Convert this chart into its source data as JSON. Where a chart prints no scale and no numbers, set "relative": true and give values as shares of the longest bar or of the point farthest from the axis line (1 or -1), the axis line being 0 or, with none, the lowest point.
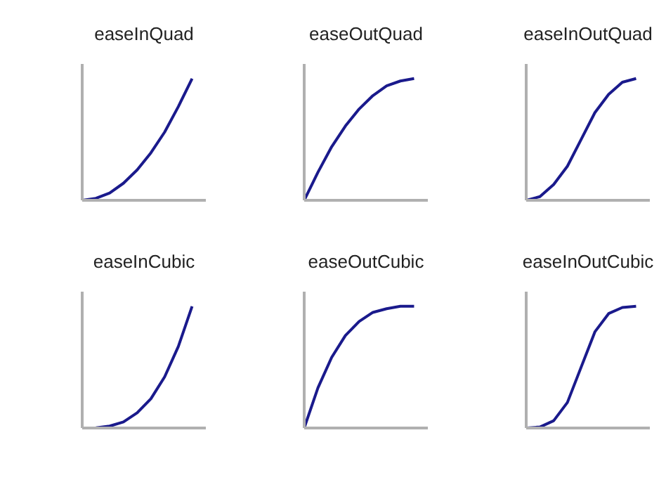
{
  "chart_data": [
    {
      "type": "line",
      "title": "easeInQuad",
      "relative": true,
      "categories": [
        null,
        null,
        null,
        null,
        null,
        null,
        null,
        null,
        null,
        null
      ],
      "series": [
        {
          "color": "#1a1a8c",
          "values": [
            0,
            0.016,
            0.06,
            0.14,
            0.25,
            0.39,
            0.56,
            0.77,
            1,
            null
          ]
        }
      ],
      "marker": "none"
    },
    {
      "type": "line",
      "title": "easeOutQuad",
      "relative": true,
      "categories": [
        null,
        null,
        null,
        null,
        null,
        null,
        null,
        null,
        null,
        null
      ],
      "series": [
        {
          "color": "#1a1a8c",
          "values": [
            0,
            0.23,
            0.44,
            0.61,
            0.75,
            0.86,
            0.94,
            0.98,
            1,
            null
          ]
        }
      ],
      "marker": "none"
    },
    {
      "type": "line",
      "title": "easeInOutQuad",
      "relative": true,
      "categories": [
        null,
        null,
        null,
        null,
        null,
        null,
        null,
        null,
        null,
        null
      ],
      "series": [
        {
          "color": "#1a1a8c",
          "values": [
            0,
            0.03,
            0.13,
            0.28,
            0.5,
            0.72,
            0.87,
            0.97,
            1,
            null
          ]
        }
      ],
      "marker": "none"
    },
    {
      "type": "line",
      "title": "easeInCubic",
      "relative": true,
      "categories": [
        null,
        null,
        null,
        null,
        null,
        null,
        null,
        null,
        null,
        null
      ],
      "series": [
        {
          "color": "#1a1a8c",
          "values": [
            0,
            0.002,
            0.016,
            0.05,
            0.125,
            0.24,
            0.42,
            0.67,
            1,
            null
          ]
        }
      ],
      "marker": "none"
    },
    {
      "type": "line",
      "title": "easeOutCubic",
      "relative": true,
      "categories": [
        null,
        null,
        null,
        null,
        null,
        null,
        null,
        null,
        null,
        null
      ],
      "series": [
        {
          "color": "#1a1a8c",
          "values": [
            0,
            0.33,
            0.58,
            0.76,
            0.875,
            0.95,
            0.98,
            1,
            1,
            null
          ]
        }
      ],
      "marker": "none"
    },
    {
      "type": "line",
      "title": "easeInOutCubic",
      "relative": true,
      "categories": [
        null,
        null,
        null,
        null,
        null,
        null,
        null,
        null,
        null,
        null
      ],
      "series": [
        {
          "color": "#1a1a8c",
          "values": [
            0,
            0.008,
            0.06,
            0.21,
            0.5,
            0.79,
            0.94,
            0.99,
            1,
            null
          ]
        }
      ],
      "marker": "none"
    }
  ]
}
